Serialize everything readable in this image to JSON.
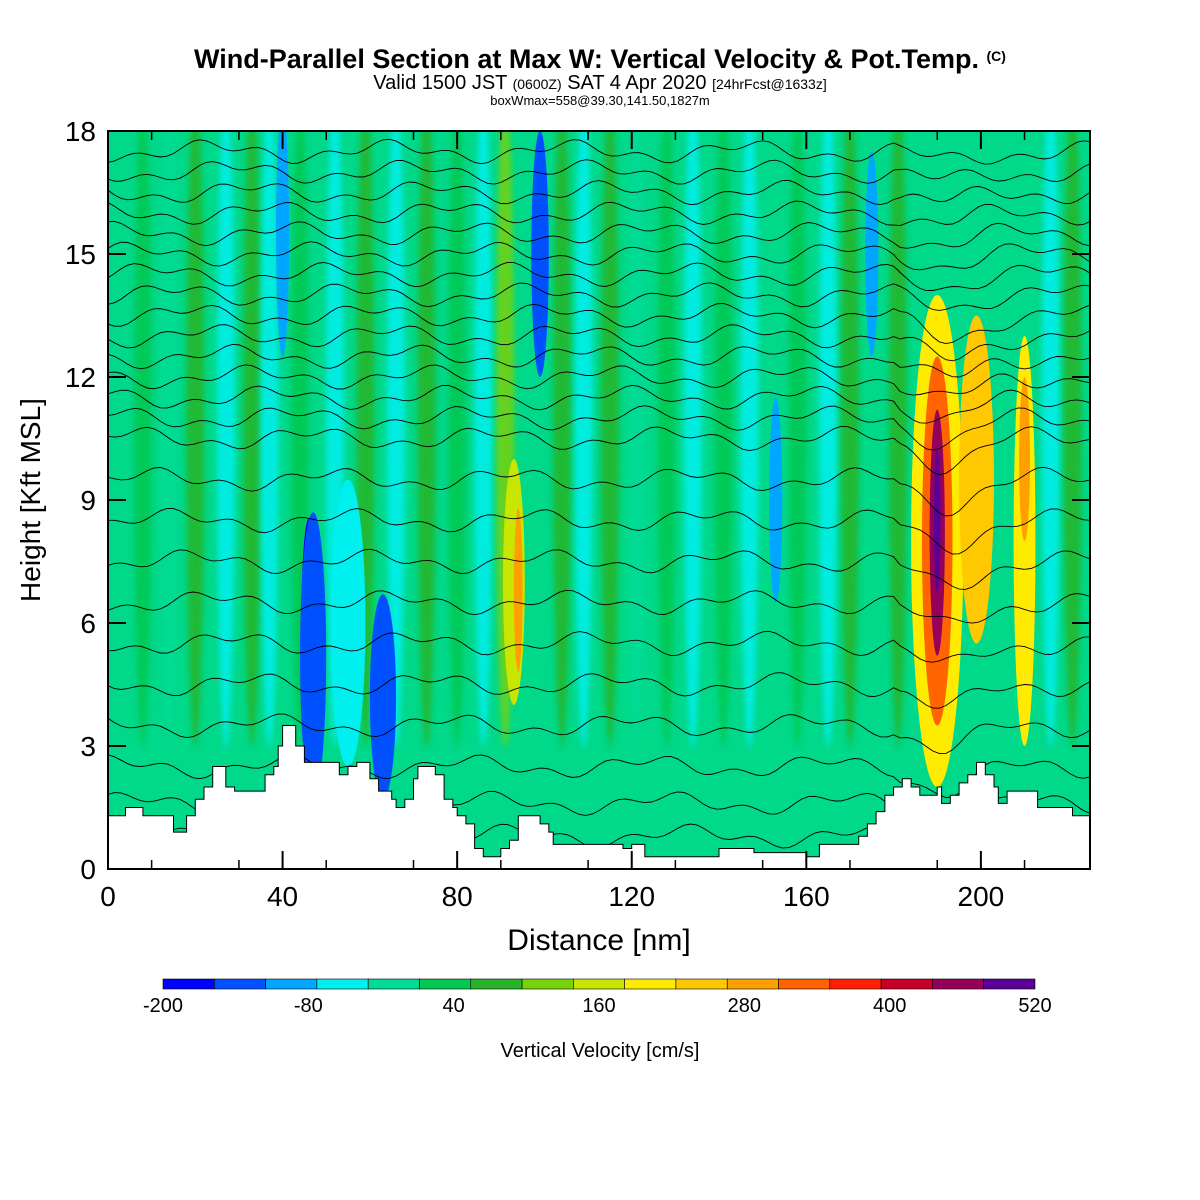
{
  "title": {
    "main": "Wind-Parallel Section at Max W: Vertical Velocity & Pot.Temp.",
    "copyright": "(C)",
    "valid_prefix": "Valid 1500 JST",
    "valid_utc": "(0600Z)",
    "valid_date": "SAT 4 Apr 2020",
    "forecast": "[24hrFcst@1633z]",
    "boxinfo": "boxWmax=558@39.30,141.50,1827m"
  },
  "chart_data": {
    "type": "heatmap",
    "xlabel": "Distance [nm]",
    "ylabel": "Height [Kft MSL]",
    "xlim": [
      0,
      225
    ],
    "ylim": [
      0,
      18
    ],
    "x_ticks": [
      0,
      40,
      80,
      120,
      160,
      200
    ],
    "y_ticks": [
      0,
      3,
      6,
      9,
      12,
      15,
      18
    ],
    "background_color": "#00d88a",
    "colorbar": {
      "label": "Vertical Velocity [cm/s]",
      "tick_labels": [
        -200,
        -80,
        40,
        160,
        280,
        400,
        520
      ],
      "bounds": [
        -200,
        520
      ],
      "colors": [
        "#0000ff",
        "#0050ff",
        "#00a6ff",
        "#00f0f0",
        "#00dc96",
        "#00c850",
        "#28b428",
        "#78d20a",
        "#c8e600",
        "#ffeb00",
        "#ffc800",
        "#ffa000",
        "#ff6400",
        "#ff1e00",
        "#c80028",
        "#96005a",
        "#5a0096"
      ]
    },
    "terrain_kft": [
      [
        0,
        1.3
      ],
      [
        4,
        1.3
      ],
      [
        4,
        1.5
      ],
      [
        8,
        1.5
      ],
      [
        8,
        1.3
      ],
      [
        15,
        1.3
      ],
      [
        15,
        0.9
      ],
      [
        18,
        0.9
      ],
      [
        18,
        1.3
      ],
      [
        20,
        1.3
      ],
      [
        20,
        1.7
      ],
      [
        22,
        1.7
      ],
      [
        22,
        2.0
      ],
      [
        24,
        2.0
      ],
      [
        24,
        2.5
      ],
      [
        27,
        2.5
      ],
      [
        27,
        2.0
      ],
      [
        29,
        2.0
      ],
      [
        29,
        1.9
      ],
      [
        36,
        1.9
      ],
      [
        36,
        2.3
      ],
      [
        38,
        2.3
      ],
      [
        38,
        2.5
      ],
      [
        39,
        2.5
      ],
      [
        39,
        3.0
      ],
      [
        40,
        3.0
      ],
      [
        40,
        3.5
      ],
      [
        43,
        3.5
      ],
      [
        43,
        3.0
      ],
      [
        45,
        3.0
      ],
      [
        45,
        2.6
      ],
      [
        48,
        2.6
      ],
      [
        48,
        2.6
      ],
      [
        53,
        2.6
      ],
      [
        53,
        2.3
      ],
      [
        55,
        2.3
      ],
      [
        55,
        2.5
      ],
      [
        57,
        2.5
      ],
      [
        57,
        2.6
      ],
      [
        60,
        2.6
      ],
      [
        60,
        2.2
      ],
      [
        62,
        2.2
      ],
      [
        62,
        1.9
      ],
      [
        65,
        1.9
      ],
      [
        65,
        1.7
      ],
      [
        66,
        1.7
      ],
      [
        66,
        1.5
      ],
      [
        68,
        1.5
      ],
      [
        68,
        1.7
      ],
      [
        70,
        1.7
      ],
      [
        70,
        2.2
      ],
      [
        71,
        2.2
      ],
      [
        71,
        2.5
      ],
      [
        75,
        2.5
      ],
      [
        75,
        2.3
      ],
      [
        77,
        2.3
      ],
      [
        77,
        1.7
      ],
      [
        79,
        1.7
      ],
      [
        79,
        1.5
      ],
      [
        80,
        1.5
      ],
      [
        80,
        1.3
      ],
      [
        82,
        1.3
      ],
      [
        82,
        1.1
      ],
      [
        84,
        1.1
      ],
      [
        84,
        0.5
      ],
      [
        86,
        0.5
      ],
      [
        86,
        0.3
      ],
      [
        90,
        0.3
      ],
      [
        90,
        0.5
      ],
      [
        92,
        0.5
      ],
      [
        92,
        0.7
      ],
      [
        94,
        0.7
      ],
      [
        94,
        1.3
      ],
      [
        99,
        1.3
      ],
      [
        99,
        1.1
      ],
      [
        101,
        1.1
      ],
      [
        101,
        0.9
      ],
      [
        102,
        0.9
      ],
      [
        102,
        0.6
      ],
      [
        118,
        0.6
      ],
      [
        118,
        0.5
      ],
      [
        120,
        0.5
      ],
      [
        120,
        0.6
      ],
      [
        123,
        0.6
      ],
      [
        123,
        0.3
      ],
      [
        140,
        0.3
      ],
      [
        140,
        0.5
      ],
      [
        148,
        0.5
      ],
      [
        148,
        0.4
      ],
      [
        160,
        0.4
      ],
      [
        160,
        0.3
      ],
      [
        163,
        0.3
      ],
      [
        163,
        0.6
      ],
      [
        172,
        0.6
      ],
      [
        172,
        0.8
      ],
      [
        174,
        0.8
      ],
      [
        174,
        1.1
      ],
      [
        176,
        1.1
      ],
      [
        176,
        1.4
      ],
      [
        178,
        1.4
      ],
      [
        178,
        1.8
      ],
      [
        180,
        1.8
      ],
      [
        180,
        2.0
      ],
      [
        182,
        2.0
      ],
      [
        182,
        2.2
      ],
      [
        184,
        2.2
      ],
      [
        184,
        2.0
      ],
      [
        186,
        2.0
      ],
      [
        186,
        1.8
      ],
      [
        190,
        1.8
      ],
      [
        190,
        2.0
      ],
      [
        191,
        2.0
      ],
      [
        191,
        1.6
      ],
      [
        193,
        1.6
      ],
      [
        193,
        1.8
      ],
      [
        195,
        1.8
      ],
      [
        195,
        2.1
      ],
      [
        197,
        2.1
      ],
      [
        197,
        2.3
      ],
      [
        199,
        2.3
      ],
      [
        199,
        2.6
      ],
      [
        201,
        2.6
      ],
      [
        201,
        2.3
      ],
      [
        203,
        2.3
      ],
      [
        203,
        2.0
      ],
      [
        204,
        2.0
      ],
      [
        204,
        1.6
      ],
      [
        206,
        1.6
      ],
      [
        206,
        1.9
      ],
      [
        213,
        1.9
      ],
      [
        213,
        1.5
      ],
      [
        221,
        1.5
      ],
      [
        221,
        1.3
      ],
      [
        225,
        1.3
      ]
    ],
    "features": [
      {
        "center_x": 46,
        "center_y": 5.8,
        "width": 3.5,
        "height": 5.5,
        "value": -200
      },
      {
        "center_x": 47,
        "center_y": 5.2,
        "width": 6,
        "height": 7,
        "value": -140
      },
      {
        "center_x": 55,
        "center_y": 6.0,
        "width": 8,
        "height": 7,
        "value": -60
      },
      {
        "center_x": 63,
        "center_y": 4.2,
        "width": 6,
        "height": 5,
        "value": -120
      },
      {
        "center_x": 40,
        "center_y": 15.5,
        "width": 3,
        "height": 6,
        "value": -100
      },
      {
        "center_x": 99,
        "center_y": 15.0,
        "width": 4,
        "height": 6,
        "value": -150
      },
      {
        "center_x": 93,
        "center_y": 7.0,
        "width": 5,
        "height": 6,
        "value": 160
      },
      {
        "center_x": 94,
        "center_y": 6.8,
        "width": 2,
        "height": 4,
        "value": 280
      },
      {
        "center_x": 175,
        "center_y": 15.0,
        "width": 3,
        "height": 5,
        "value": -80
      },
      {
        "center_x": 153,
        "center_y": 9.0,
        "width": 3,
        "height": 5,
        "value": -90
      },
      {
        "center_x": 190,
        "center_y": 8.0,
        "width": 12,
        "height": 12,
        "value": 200
      },
      {
        "center_x": 190,
        "center_y": 8.0,
        "width": 7,
        "height": 9,
        "value": 340
      },
      {
        "center_x": 190,
        "center_y": 8.2,
        "width": 3.5,
        "height": 6,
        "value": 460
      },
      {
        "center_x": 190,
        "center_y": 8.5,
        "width": 1.5,
        "height": 3.5,
        "value": 520
      },
      {
        "center_x": 199,
        "center_y": 9.5,
        "width": 8,
        "height": 8,
        "value": 250
      },
      {
        "center_x": 210,
        "center_y": 8.0,
        "width": 5,
        "height": 10,
        "value": 220
      },
      {
        "center_x": 210,
        "center_y": 10.0,
        "width": 2.5,
        "height": 4,
        "value": 300
      }
    ],
    "stripes": [
      {
        "x": 8,
        "value": 40
      },
      {
        "x": 14,
        "value": 0
      },
      {
        "x": 20,
        "value": 60
      },
      {
        "x": 27,
        "value": -60
      },
      {
        "x": 33,
        "value": 80
      },
      {
        "x": 37,
        "value": -40
      },
      {
        "x": 44,
        "value": 40
      },
      {
        "x": 52,
        "value": -70
      },
      {
        "x": 59,
        "value": 90
      },
      {
        "x": 66,
        "value": -50
      },
      {
        "x": 73,
        "value": 60
      },
      {
        "x": 80,
        "value": 40
      },
      {
        "x": 86,
        "value": -40
      },
      {
        "x": 91,
        "value": 100
      },
      {
        "x": 104,
        "value": 60
      },
      {
        "x": 109,
        "value": -60
      },
      {
        "x": 115,
        "value": 60
      },
      {
        "x": 121,
        "value": -30
      },
      {
        "x": 128,
        "value": 40
      },
      {
        "x": 134,
        "value": -70
      },
      {
        "x": 141,
        "value": 50
      },
      {
        "x": 147,
        "value": -60
      },
      {
        "x": 158,
        "value": 50
      },
      {
        "x": 165,
        "value": -60
      },
      {
        "x": 170,
        "value": 60
      },
      {
        "x": 181,
        "value": 80
      },
      {
        "x": 216,
        "value": -50
      },
      {
        "x": 221,
        "value": 60
      }
    ],
    "isentropes_kft": [
      0.8,
      1.6,
      2.5,
      3.5,
      4.5,
      5.5,
      6.5,
      7.5,
      8.5,
      9.5,
      10.5,
      11.0,
      11.5,
      12.0,
      12.5,
      13.0,
      13.5,
      14.0,
      14.5,
      15.0,
      15.5,
      16.0,
      16.5,
      17.0,
      17.5
    ]
  }
}
